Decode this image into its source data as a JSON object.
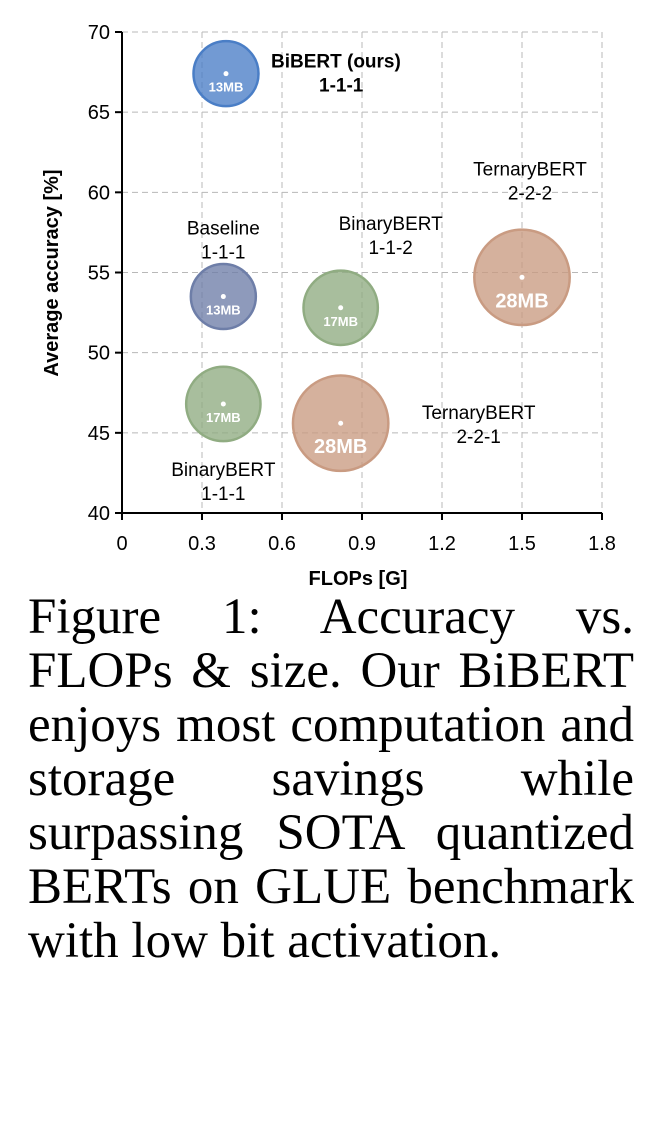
{
  "chart_data": {
    "type": "scatter",
    "subtype": "bubble",
    "title": "",
    "xlabel": "FLOPs [G]",
    "ylabel": "Average accuracy [%]",
    "xlim": [
      0,
      1.8
    ],
    "ylim": [
      40,
      70
    ],
    "xticks": [
      "0",
      "0.3",
      "0.6",
      "0.9",
      "1.2",
      "1.5",
      "1.8"
    ],
    "yticks": [
      "40",
      "45",
      "50",
      "55",
      "60",
      "65",
      "70"
    ],
    "grid": true,
    "points": [
      {
        "name": "BiBERT (ours)",
        "config": "1-1-1",
        "x": 0.39,
        "y": 67.4,
        "size_mb": 13,
        "size_label": "13MB",
        "color": "#4a7ec6"
      },
      {
        "name": "Baseline",
        "config": "1-1-1",
        "x": 0.38,
        "y": 53.5,
        "size_mb": 13,
        "size_label": "13MB",
        "color": "#6e7ea8"
      },
      {
        "name": "BinaryBERT",
        "config": "1-1-2",
        "x": 0.82,
        "y": 52.8,
        "size_mb": 17,
        "size_label": "17MB",
        "color": "#90ac82"
      },
      {
        "name": "TernaryBERT",
        "config": "2-2-2",
        "x": 1.5,
        "y": 54.7,
        "size_mb": 28,
        "size_label": "28MB",
        "color": "#c99b82"
      },
      {
        "name": "BinaryBERT",
        "config": "1-1-1",
        "x": 0.38,
        "y": 46.8,
        "size_mb": 17,
        "size_label": "17MB",
        "color": "#90ac82"
      },
      {
        "name": "TernaryBERT",
        "config": "2-2-1",
        "x": 0.82,
        "y": 45.6,
        "size_mb": 28,
        "size_label": "28MB",
        "color": "#c99b82"
      }
    ]
  },
  "caption": "Figure 1: Accuracy vs. FLOPs & size. Our BiBERT enjoys most computation and storage savings while surpassing SOTA quantized BERTs on GLUE benchmark with low bit activation."
}
